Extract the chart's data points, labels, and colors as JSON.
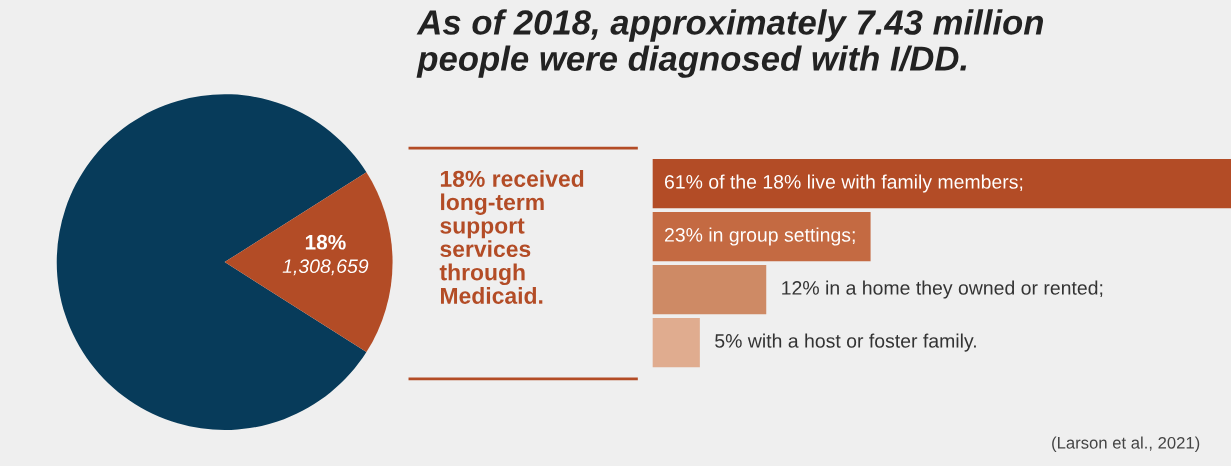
{
  "chart_data": [
    {
      "type": "pie",
      "categories": [
        null,
        null
      ],
      "values": [
        82,
        18
      ],
      "colors": [
        "#073b5a",
        "#b34c26"
      ],
      "value_labels": [
        null,
        "18%\n1,308,659"
      ]
    },
    {
      "type": "bar",
      "orientation": "horizontal",
      "title": "As of 2018, approximately 7.43 million\npeople were diagnosed with I/DD.",
      "categories": [
        null,
        null,
        null,
        null
      ],
      "values": [
        61,
        23,
        12,
        5
      ],
      "colors": [
        "#b34c26",
        "#c46a42",
        "#ce8a65",
        "#e0ac8f"
      ],
      "value_labels": [
        "61% of the 18% live with family members;",
        "23% in group settings;",
        "12% in a home they owned or rented;",
        "5% with a host or foster family."
      ],
      "annotations": [
        "18% received\nlong-term\nsupport\nservices\nthrough\nMedicaid.",
        "(Larson et al., 2021)"
      ]
    }
  ]
}
